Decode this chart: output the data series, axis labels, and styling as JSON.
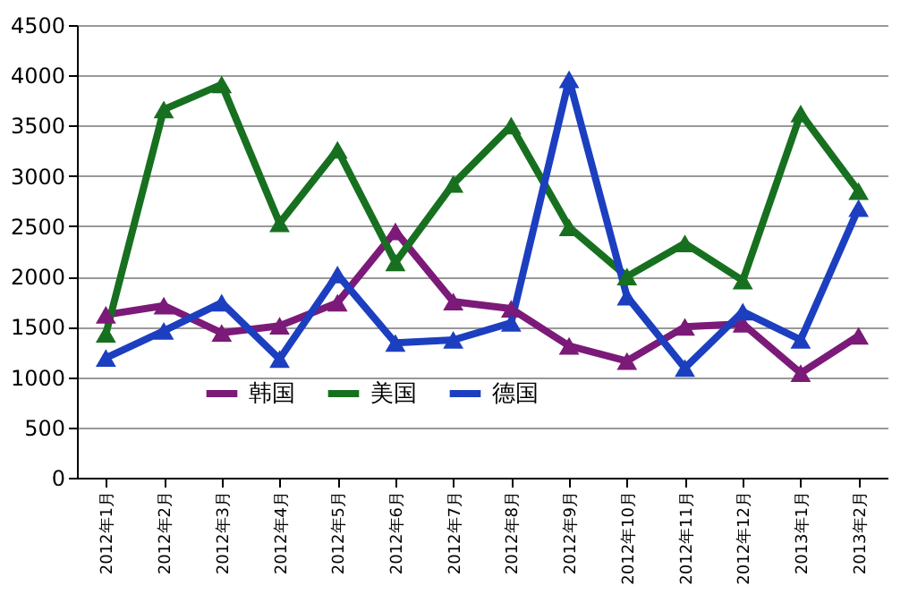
{
  "chart_data": {
    "type": "line",
    "categories": [
      "2012年1月",
      "2012年2月",
      "2012年3月",
      "2012年4月",
      "2012年5月",
      "2012年6月",
      "2012年7月",
      "2012年8月",
      "2012年9月",
      "2012年10月",
      "2012年11月",
      "2012年12月",
      "2013年1月",
      "2013年2月"
    ],
    "series": [
      {
        "name": "韩国",
        "color": "#7b1a78",
        "values": [
          1620,
          1710,
          1440,
          1510,
          1740,
          2450,
          1750,
          1680,
          1310,
          1160,
          1500,
          1530,
          1040,
          1410
        ]
      },
      {
        "name": "美国",
        "color": "#17701f",
        "values": [
          1430,
          3660,
          3910,
          2530,
          3260,
          2140,
          2920,
          3500,
          2490,
          2000,
          2330,
          1960,
          3620,
          2850
        ]
      },
      {
        "name": "德国",
        "color": "#1c3fc0",
        "values": [
          1190,
          1460,
          1740,
          1180,
          2020,
          1340,
          1370,
          1540,
          3960,
          1800,
          1090,
          1650,
          1370,
          2680
        ]
      }
    ],
    "ylim": [
      0,
      4500
    ],
    "yticks": [
      0,
      500,
      1000,
      1500,
      2000,
      2500,
      3000,
      3500,
      4000,
      4500
    ],
    "grid": "y",
    "legend": "bottom",
    "marker": "triangle",
    "line_style": "solid"
  }
}
